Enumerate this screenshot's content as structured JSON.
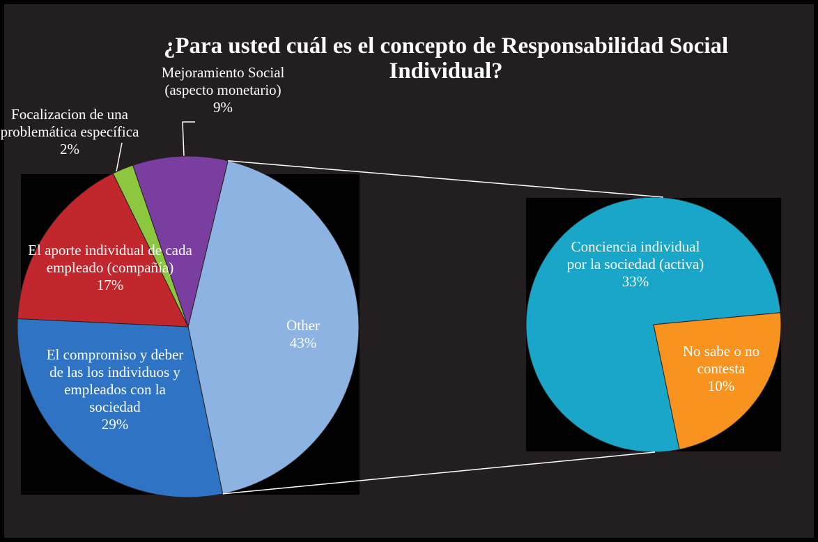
{
  "chart_data": {
    "type": "pie_of_pie",
    "title": "¿Para usted cuál es el concepto de Responsabilidad Social Individual?",
    "categories": [
      "Other",
      "El compromiso y deber de las los individuos y empleados con la sociedad",
      "El aporte individual de cada empleado (compañía)",
      "Focalizacion de una problemática específica",
      "Mejoramiento Social (aspecto monetario)"
    ],
    "values": [
      43,
      29,
      17,
      2,
      9
    ],
    "value_labels": [
      "43%",
      "29%",
      "17%",
      "2%",
      "9%"
    ],
    "colors": [
      "#8db3e2",
      "#2f74c4",
      "#c1272d",
      "#8dc63f",
      "#7a3ea1"
    ],
    "secondary": {
      "categories": [
        "Conciencia individual por la sociedad (activa)",
        "No sabe o no contesta"
      ],
      "values": [
        33,
        10
      ],
      "value_labels": [
        "33%",
        "10%"
      ],
      "colors": [
        "#1aa6c8",
        "#f7931e"
      ]
    }
  }
}
